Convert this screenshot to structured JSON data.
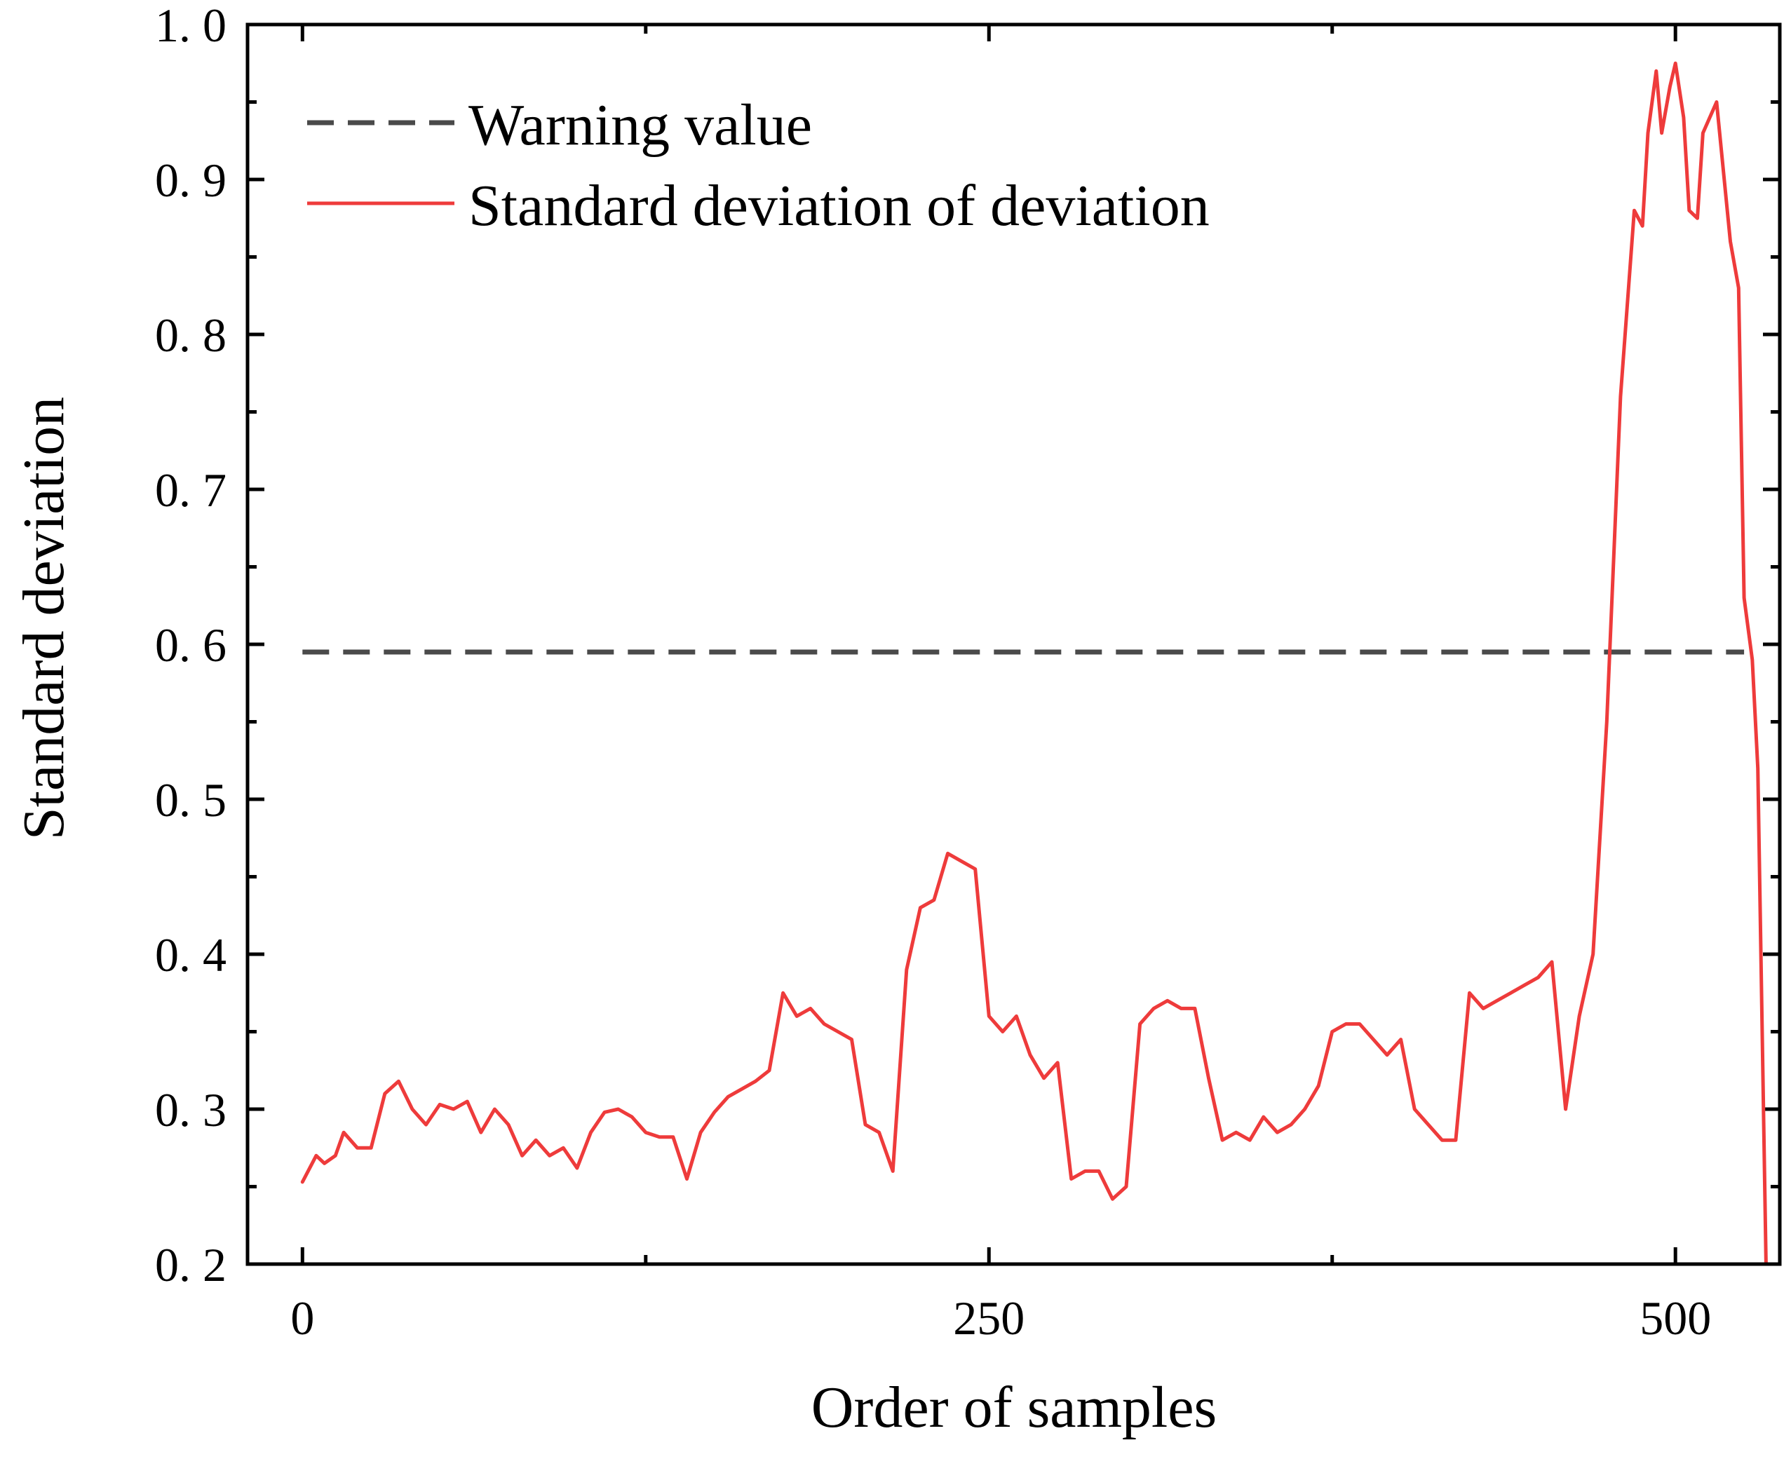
{
  "chart_data": {
    "type": "line",
    "title": "",
    "xlabel": "Order of samples",
    "ylabel": "Standard deviation",
    "xlim": [
      -20,
      538
    ],
    "ylim": [
      0.2,
      1.0
    ],
    "x_ticks": [
      0,
      250,
      500
    ],
    "x_tick_labels": [
      "0",
      "250",
      "500"
    ],
    "y_ticks": [
      0.2,
      0.3,
      0.4,
      0.5,
      0.6,
      0.7,
      0.8,
      0.9,
      1.0
    ],
    "y_tick_labels": [
      "0. 2",
      "0. 3",
      "0. 4",
      "0. 5",
      "0. 6",
      "0. 7",
      "0. 8",
      "0. 9",
      "1. 0"
    ],
    "grid": false,
    "legend_position": "top-left",
    "colors": {
      "warning": "#4a4a4a",
      "deviation": "#ee3b3b",
      "axis": "#000000"
    },
    "series": [
      {
        "name": "Warning value",
        "style": "dashed",
        "x": [
          0,
          525
        ],
        "y": [
          0.595,
          0.595
        ]
      },
      {
        "name": "Standard deviation of deviation",
        "style": "solid",
        "x": [
          0,
          5,
          8,
          12,
          15,
          20,
          25,
          30,
          35,
          40,
          45,
          50,
          55,
          60,
          65,
          70,
          75,
          80,
          85,
          90,
          95,
          100,
          105,
          110,
          115,
          120,
          125,
          130,
          135,
          140,
          145,
          150,
          155,
          160,
          165,
          170,
          175,
          180,
          185,
          190,
          195,
          200,
          205,
          210,
          215,
          220,
          225,
          230,
          235,
          240,
          245,
          250,
          255,
          260,
          265,
          270,
          275,
          280,
          285,
          290,
          295,
          300,
          305,
          310,
          315,
          320,
          325,
          330,
          335,
          340,
          345,
          350,
          355,
          360,
          365,
          370,
          375,
          380,
          385,
          390,
          395,
          400,
          405,
          410,
          415,
          420,
          425,
          430,
          435,
          440,
          445,
          450,
          455,
          460,
          465,
          470,
          475,
          480,
          485,
          488,
          490,
          493,
          495,
          498,
          500,
          503,
          505,
          508,
          510,
          515,
          520,
          523,
          525,
          528,
          530,
          533
        ],
        "y": [
          0.253,
          0.27,
          0.265,
          0.27,
          0.285,
          0.275,
          0.275,
          0.31,
          0.318,
          0.3,
          0.29,
          0.303,
          0.3,
          0.305,
          0.285,
          0.3,
          0.29,
          0.27,
          0.28,
          0.27,
          0.275,
          0.262,
          0.285,
          0.298,
          0.3,
          0.295,
          0.285,
          0.282,
          0.282,
          0.255,
          0.285,
          0.298,
          0.308,
          0.313,
          0.318,
          0.325,
          0.375,
          0.36,
          0.365,
          0.355,
          0.35,
          0.345,
          0.29,
          0.285,
          0.26,
          0.39,
          0.43,
          0.435,
          0.465,
          0.46,
          0.455,
          0.36,
          0.35,
          0.36,
          0.335,
          0.32,
          0.33,
          0.255,
          0.26,
          0.26,
          0.242,
          0.25,
          0.355,
          0.365,
          0.37,
          0.365,
          0.365,
          0.32,
          0.28,
          0.285,
          0.28,
          0.295,
          0.285,
          0.29,
          0.3,
          0.315,
          0.35,
          0.355,
          0.355,
          0.345,
          0.335,
          0.345,
          0.3,
          0.29,
          0.28,
          0.28,
          0.375,
          0.365,
          0.37,
          0.375,
          0.38,
          0.385,
          0.395,
          0.3,
          0.36,
          0.4,
          0.55,
          0.76,
          0.88,
          0.87,
          0.93,
          0.97,
          0.93,
          0.96,
          0.975,
          0.94,
          0.88,
          0.875,
          0.93,
          0.95,
          0.86,
          0.83,
          0.63,
          0.59,
          0.52,
          0.2
        ]
      }
    ]
  }
}
